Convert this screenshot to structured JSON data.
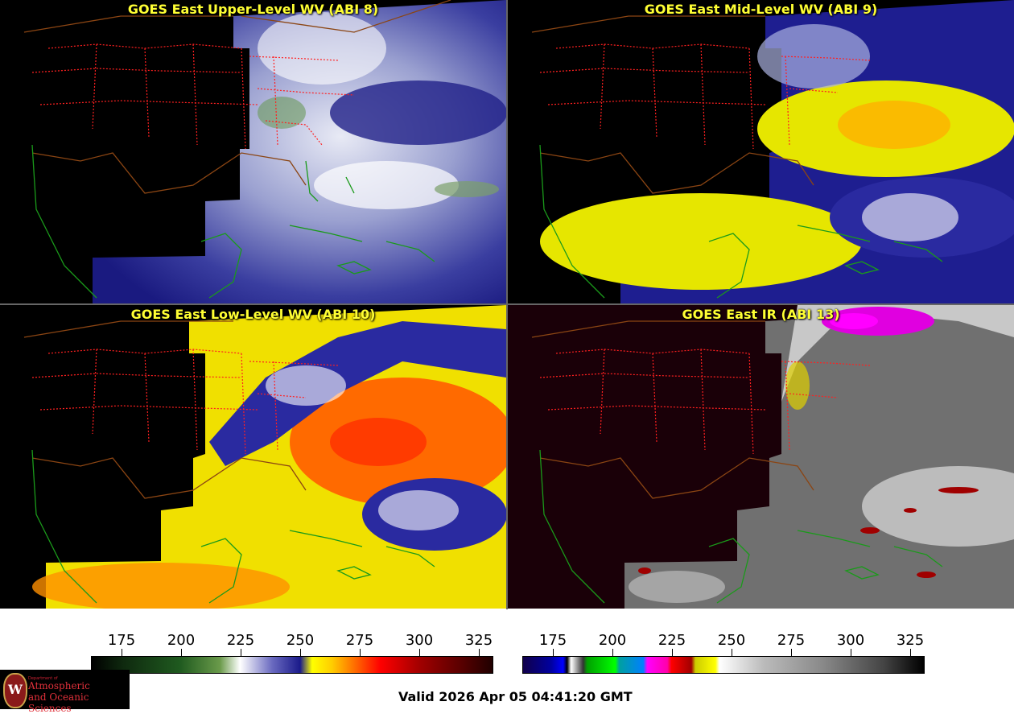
{
  "panels": [
    {
      "title": "GOES East Upper-Level WV (ABI 8)",
      "scheme": "wv-upper"
    },
    {
      "title": "GOES East Mid-Level WV (ABI 9)",
      "scheme": "wv-mid"
    },
    {
      "title": "GOES East Low-Level WV (ABI 10)",
      "scheme": "wv-low"
    },
    {
      "title": "GOES East IR (ABI 13)",
      "scheme": "ir"
    }
  ],
  "colorbars": {
    "left": {
      "ticks": [
        "175",
        "200",
        "225",
        "250",
        "275",
        "300",
        "325"
      ]
    },
    "right": {
      "ticks": [
        "175",
        "200",
        "225",
        "250",
        "275",
        "300",
        "325"
      ]
    }
  },
  "logo": {
    "seal_letter": "W",
    "dept_line": "Department of",
    "line1": "Atmospheric",
    "line2": "and Oceanic Sciences"
  },
  "valid_time": "Valid 2026 Apr 05 04:41:20 GMT",
  "colors": {
    "title": "#ffff33",
    "state_borders": "#ff2020",
    "country_borders": "#8b4513",
    "coastlines": "#1a8a1a"
  }
}
